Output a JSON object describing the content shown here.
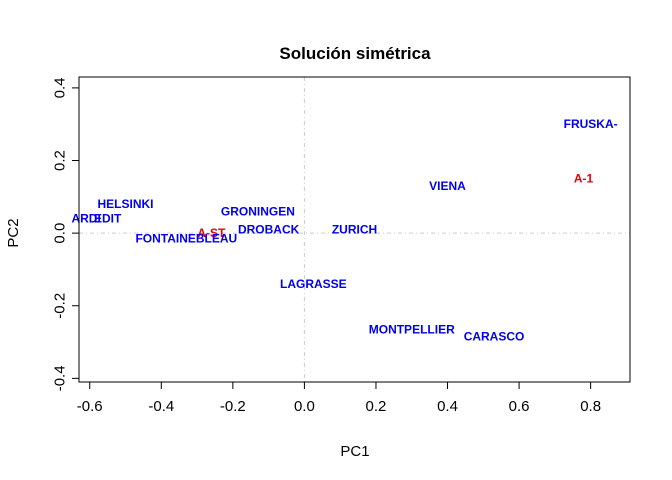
{
  "chart_data": {
    "type": "scatter",
    "title": "Solución simétrica",
    "xlabel": "PC1",
    "ylabel": "PC2",
    "xlim": [
      -0.63,
      0.91
    ],
    "ylim": [
      -0.41,
      0.43
    ],
    "x_ticks": [
      -0.6,
      -0.4,
      -0.2,
      0.0,
      0.2,
      0.4,
      0.6,
      0.8
    ],
    "x_tick_labels": [
      "-0.6",
      "-0.4",
      "-0.2",
      "0.0",
      "0.2",
      "0.4",
      "0.6",
      "0.8"
    ],
    "y_ticks": [
      -0.4,
      -0.2,
      0.0,
      0.2,
      0.4
    ],
    "y_tick_labels": [
      "-0.4",
      "-0.2",
      "0.0",
      "0.2",
      "0.4"
    ],
    "reference_lines": {
      "x": 0,
      "y": 0
    },
    "grid": false,
    "colors": {
      "row_points": "#0000ee",
      "column_points": "#ee0000",
      "reference": "#cccccc"
    },
    "points": [
      {
        "label": "FRUSKA-",
        "x": 0.8,
        "y": 0.3,
        "color": "#0000ee"
      },
      {
        "label": "A-1",
        "x": 0.78,
        "y": 0.15,
        "color": "#ee0000"
      },
      {
        "label": "VIENA",
        "x": 0.4,
        "y": 0.13,
        "color": "#0000ee"
      },
      {
        "label": "HELSINKI",
        "x": -0.5,
        "y": 0.08,
        "color": "#0000ee"
      },
      {
        "label": "GRONINGEN",
        "x": -0.13,
        "y": 0.06,
        "color": "#0000ee"
      },
      {
        "label": "ARDI",
        "x": -0.61,
        "y": 0.04,
        "color": "#0000ee"
      },
      {
        "label": "EDIT",
        "x": -0.55,
        "y": 0.04,
        "color": "#0000ee"
      },
      {
        "label": "DROBACK",
        "x": -0.1,
        "y": 0.01,
        "color": "#0000ee"
      },
      {
        "label": "ZURICH",
        "x": 0.14,
        "y": 0.01,
        "color": "#0000ee"
      },
      {
        "label": "A-ST",
        "x": -0.26,
        "y": 0.0,
        "color": "#ee0000"
      },
      {
        "label": "FONTAINEBLEAU",
        "x": -0.33,
        "y": -0.015,
        "color": "#0000ee"
      },
      {
        "label": "LAGRASSE",
        "x": 0.025,
        "y": -0.14,
        "color": "#0000ee"
      },
      {
        "label": "MONTPELLIER",
        "x": 0.3,
        "y": -0.265,
        "color": "#0000ee"
      },
      {
        "label": "CARASCO",
        "x": 0.53,
        "y": -0.285,
        "color": "#0000ee"
      }
    ]
  }
}
